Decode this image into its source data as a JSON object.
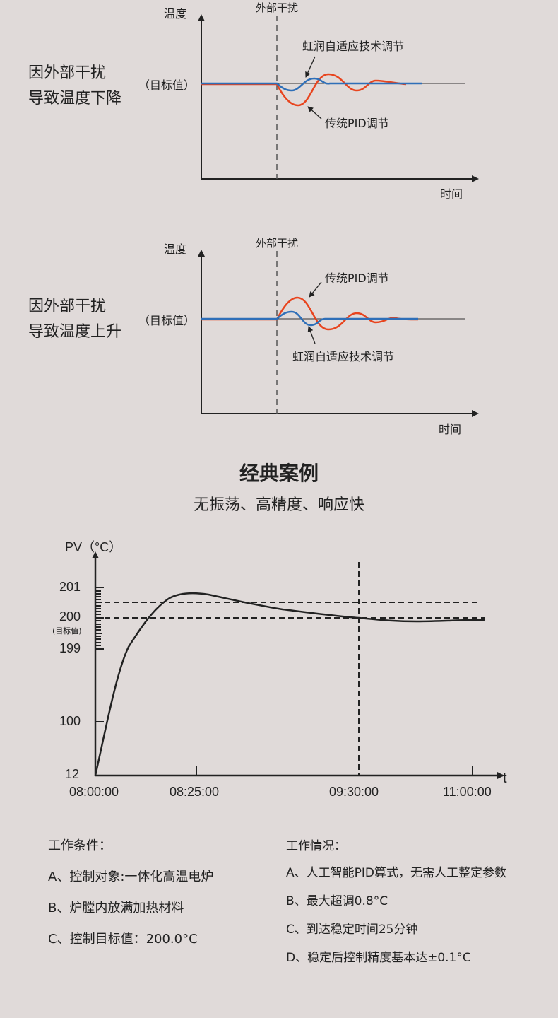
{
  "colors": {
    "background": "#e0dad9",
    "traditional_pid": "#e8441e",
    "adaptive": "#2f6fb8",
    "axis": "#222222"
  },
  "diagram1": {
    "side_label_lines": [
      "因外部干扰",
      "导致温度下降"
    ],
    "y_axis_label": "温度",
    "x_axis_label": "时间",
    "target_label": "（目标值）",
    "disturbance_label": "外部干扰",
    "adaptive_label": "虹润自适应技术调节",
    "pid_label": "传统PID调节"
  },
  "diagram2": {
    "side_label_lines": [
      "因外部干扰",
      "导致温度上升"
    ],
    "y_axis_label": "温度",
    "x_axis_label": "时间",
    "target_label": "（目标值）",
    "disturbance_label": "外部干扰",
    "adaptive_label": "虹润自适应技术调节",
    "pid_label": "传统PID调节"
  },
  "case": {
    "title": "经典案例",
    "subtitle": "无振荡、高精度、响应快"
  },
  "case_chart": {
    "y_axis_label": "PV（°C）",
    "x_axis_label": "t",
    "y_ticks": [
      "201",
      "200",
      "199",
      "100",
      "12"
    ],
    "target_note": "(目标值)",
    "x_ticks": [
      "08:00:00",
      "08:25:00",
      "09:30:00",
      "11:00:00"
    ]
  },
  "conditions": {
    "heading": "工作条件：",
    "items": [
      "A、控制对象:一体化高温电炉",
      "B、炉膛内放满加热材料",
      "C、控制目标值：200.0°C"
    ]
  },
  "results": {
    "heading": "工作情况：",
    "items": [
      "A、人工智能PID算式，无需人工整定参数",
      "B、最大超调0.8°C",
      "C、到达稳定时间25分钟",
      "D、稳定后控制精度基本达±0.1°C"
    ]
  }
}
